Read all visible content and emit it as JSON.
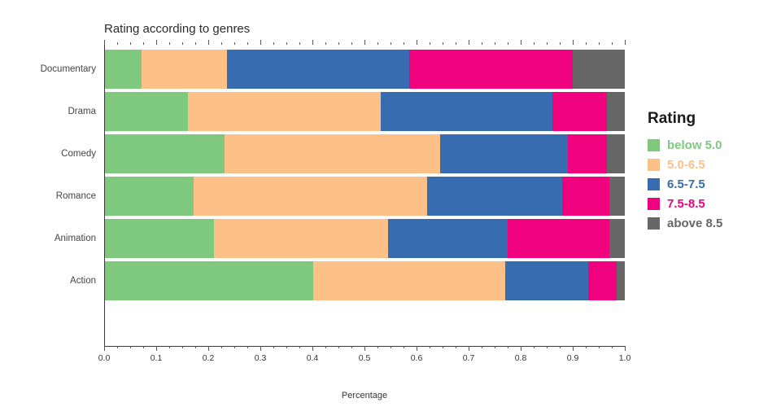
{
  "legend": {
    "title": "Rating"
  },
  "axis": {
    "tick_labels": [
      "0.0",
      "0.1",
      "0.2",
      "0.3",
      "0.4",
      "0.5",
      "0.6",
      "0.7",
      "0.8",
      "0.9",
      "1.0"
    ]
  },
  "chart_data": {
    "type": "bar",
    "orientation": "horizontal",
    "stacked": true,
    "title": "Rating according to genres",
    "xlabel": "Percentage",
    "ylabel": "",
    "xlim": [
      0,
      1
    ],
    "grid": false,
    "legend_position": "right",
    "categories": [
      "Documentary",
      "Drama",
      "Comedy",
      "Romance",
      "Animation",
      "Action"
    ],
    "series": [
      {
        "name": "below 5.0",
        "color": "#7fc97f",
        "values": [
          0.07,
          0.16,
          0.23,
          0.17,
          0.21,
          0.4
        ]
      },
      {
        "name": "5.0-6.5",
        "color": "#fdc086",
        "values": [
          0.165,
          0.37,
          0.415,
          0.45,
          0.335,
          0.37
        ]
      },
      {
        "name": "6.5-7.5",
        "color": "#386cb0",
        "values": [
          0.35,
          0.33,
          0.245,
          0.26,
          0.23,
          0.16
        ]
      },
      {
        "name": "7.5-8.5",
        "color": "#f0027f",
        "values": [
          0.315,
          0.105,
          0.075,
          0.09,
          0.195,
          0.055
        ]
      },
      {
        "name": "above 8.5",
        "color": "#666666",
        "values": [
          0.1,
          0.035,
          0.035,
          0.03,
          0.03,
          0.015
        ]
      }
    ]
  }
}
